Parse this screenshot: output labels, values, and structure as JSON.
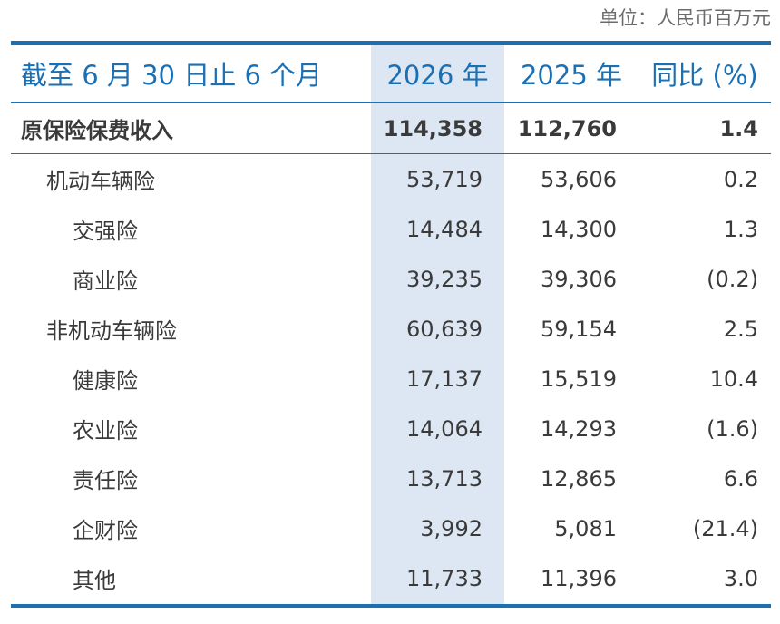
{
  "unit_note": "单位：人民币百万元",
  "header": {
    "period": "截至 6 月 30 日止 6 个月",
    "year_current": "2026 年",
    "year_prior": "2025 年",
    "yoy": "同比 (%)"
  },
  "total": {
    "label": "原保险保费收入",
    "current": "114,358",
    "prior": "112,760",
    "yoy": "1.4"
  },
  "rows": [
    {
      "label": "机动车辆险",
      "current": "53,719",
      "prior": "53,606",
      "yoy": "0.2"
    },
    {
      "label": "交强险",
      "current": "14,484",
      "prior": "14,300",
      "yoy": "1.3"
    },
    {
      "label": "商业险",
      "current": "39,235",
      "prior": "39,306",
      "yoy": "(0.2)"
    },
    {
      "label": "非机动车辆险",
      "current": "60,639",
      "prior": "59,154",
      "yoy": "2.5"
    },
    {
      "label": "健康险",
      "current": "17,137",
      "prior": "15,519",
      "yoy": "10.4"
    },
    {
      "label": "农业险",
      "current": "14,064",
      "prior": "14,293",
      "yoy": "(1.6)"
    },
    {
      "label": "责任险",
      "current": "13,713",
      "prior": "12,865",
      "yoy": "6.6"
    },
    {
      "label": "企财险",
      "current": "3,992",
      "prior": "5,081",
      "yoy": "(21.4)"
    },
    {
      "label": "其他",
      "current": "11,733",
      "prior": "11,396",
      "yoy": "3.0"
    }
  ],
  "colors": {
    "accent": "#1b6fb3",
    "highlight_column": "#dde7f3",
    "text": "#3a3a3a"
  }
}
